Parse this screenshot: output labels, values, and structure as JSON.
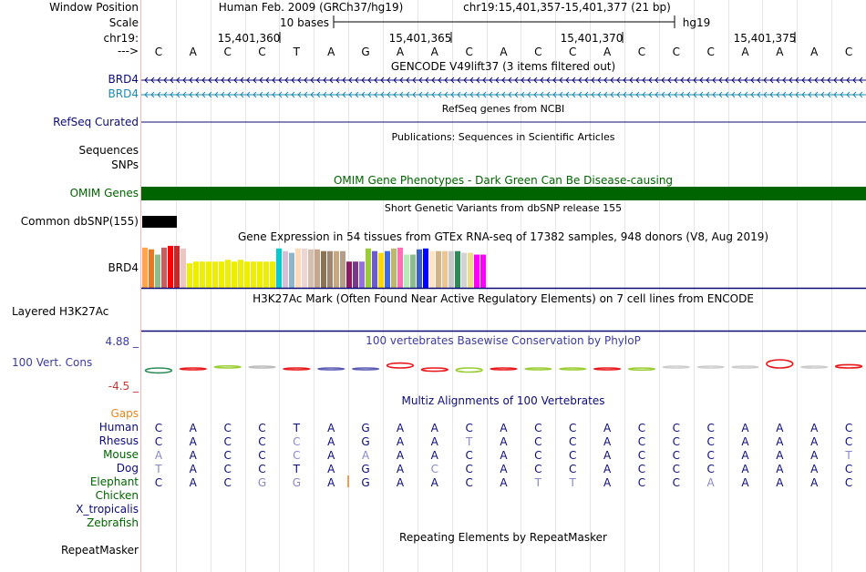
{
  "header": {
    "window_position_label": "Window Position",
    "assembly": "Human Feb. 2009 (GRCh37/hg19)",
    "position": "chr19:15,401,357-15,401,377 (21 bp)",
    "scale_label": "Scale",
    "scale_bar_text": "10 bases",
    "scale_db": "hg19",
    "chrom_label": "chr19:",
    "ticks": [
      "15,401,360",
      "15,401,365",
      "15,401,370",
      "15,401,375"
    ],
    "strand_label": "--->"
  },
  "sequence": [
    "C",
    "A",
    "C",
    "C",
    "T",
    "A",
    "G",
    "A",
    "A",
    "C",
    "A",
    "C",
    "C",
    "A",
    "C",
    "C",
    "C",
    "A",
    "A",
    "A",
    "C"
  ],
  "tracks": {
    "gencode": {
      "title": "GENCODE V49lift37 (3 items filtered out)",
      "genes": [
        {
          "name": "BRD4",
          "color": "#0c0c78"
        },
        {
          "name": "BRD4",
          "color": "#1d8ab0"
        }
      ]
    },
    "refseq": {
      "label": "RefSeq Curated",
      "title": "RefSeq genes from NCBI",
      "color": "#0c0c78"
    },
    "publications": {
      "title": "Publications: Sequences in Scientific Articles",
      "labels": [
        "Sequences",
        "SNPs"
      ]
    },
    "omim": {
      "label": "OMIM Genes",
      "title": "OMIM Gene Phenotypes - Dark Green Can Be Disease-causing",
      "color": "#006400"
    },
    "dbsnp": {
      "title": "Short Genetic Variants from dbSNP release 155",
      "label": "Common dbSNP(155)"
    },
    "gtex": {
      "title": "Gene Expression in 54 tissues from GTEx RNA-seq of 17382 samples, 948 donors (V8, Aug 2019)",
      "label": "BRD4",
      "colors": [
        "#ffa54f",
        "#ee7621",
        "#8fbc8f",
        "#cd5c5c",
        "#ff0000",
        "#cd2626",
        "#eec5c5",
        "#eeee00",
        "#eeee00",
        "#eeee00",
        "#eeee00",
        "#eeee00",
        "#eeee00",
        "#eeee00",
        "#eeee00",
        "#eeee00",
        "#eeee00",
        "#eeee00",
        "#eeee00",
        "#eeee00",
        "#eeee00",
        "#00cdcd",
        "#d8bfd8",
        "#8db6cd",
        "#ffdab9",
        "#eed5d2",
        "#d3c0b0",
        "#c8a68c",
        "#8b7355",
        "#a08570",
        "#c6a883",
        "#b49e88",
        "#8b1c62",
        "#7a378b",
        "#9370db",
        "#9acd32",
        "#6a5acd",
        "#ffd700",
        "#4169e1",
        "#bdb76b",
        "#ff6eb4",
        "#b4eeb4",
        "#8fbc8f",
        "#3a5fcd",
        "#0000ff",
        "#ffe4c4",
        "#d2b48c",
        "#eec591",
        "#c8c8c8",
        "#2e8b57",
        "#d3d3d3",
        "#eedd82",
        "#ff00ff",
        "#ff00ff"
      ],
      "values": [
        46,
        44,
        38,
        46,
        48,
        48,
        45,
        28,
        30,
        30,
        30,
        30,
        30,
        32,
        30,
        32,
        30,
        30,
        30,
        30,
        30,
        45,
        42,
        40,
        45,
        45,
        44,
        44,
        42,
        42,
        42,
        42,
        30,
        30,
        30,
        45,
        42,
        40,
        42,
        45,
        46,
        38,
        38,
        44,
        45,
        42,
        42,
        42,
        42,
        42,
        40,
        40,
        38,
        38
      ]
    },
    "h3k27ac": {
      "title": "H3K27Ac Mark (Often Found Near Active Regulatory Elements) on 7 cell lines from ENCODE",
      "label": "Layered H3K27Ac"
    },
    "phylop": {
      "title": "100 vertebrates Basewise Conservation by PhyloP",
      "label": "100 Vert. Cons",
      "ymax": "4.88 _",
      "ymin": "-4.5 _",
      "scores": [
        -0.6,
        -0.1,
        0.25,
        0.0,
        -0.05,
        -0.15,
        -0.1,
        0.6,
        -0.4,
        -0.5,
        -0.1,
        -0.1,
        -0.05,
        -0.05,
        -0.25,
        0.0,
        0.0,
        0.0,
        1.0,
        0.0,
        0.4
      ],
      "colors": [
        "#2e8b57",
        "#e8171b",
        "#9acd32",
        "#bbbbbb",
        "#e8171b",
        "#5a5ab4",
        "#5a5ab4",
        "#e8171b",
        "#e8171b",
        "#9acd32",
        "#e8171b",
        "#9acd32",
        "#9acd32",
        "#e8171b",
        "#9acd32",
        "#cccccc",
        "#cccccc",
        "#cccccc",
        "#e8171b",
        "#cccccc",
        "#e8171b"
      ]
    },
    "multiz": {
      "title": "Multiz Alignments of 100 Vertebrates",
      "gaps_label": "Gaps",
      "species": [
        {
          "name": "Human",
          "color": "#0c0c78",
          "bases": "CACCTAGAACACCACCCAAAC",
          "light": []
        },
        {
          "name": "Rhesus",
          "color": "#0c0c78",
          "bases": "CACCCAGAATACCACCCAAAC",
          "light": [
            4,
            9
          ]
        },
        {
          "name": "Mouse",
          "color": "#006400",
          "bases": "AACCCAAAACACCACCCAAAT",
          "light": [
            0,
            4,
            6,
            20
          ]
        },
        {
          "name": "Dog",
          "color": "#0c0c78",
          "bases": "TACCTAGACCACCACCCAAAC",
          "light": [
            0,
            8
          ]
        },
        {
          "name": "Elephant",
          "color": "#006400",
          "bases": "CACGGAGAACATTACCAAAAC",
          "light": [
            3,
            4,
            11,
            12,
            16
          ]
        },
        {
          "name": "Chicken",
          "color": "#006400",
          "bases": "",
          "light": []
        },
        {
          "name": "X_tropicalis",
          "color": "#0c0c78",
          "bases": "",
          "light": []
        },
        {
          "name": "Zebrafish",
          "color": "#006400",
          "bases": "",
          "light": []
        }
      ]
    },
    "repeatmasker": {
      "title": "Repeating Elements by RepeatMasker",
      "label": "RepeatMasker"
    }
  },
  "colors": {
    "navy": "#0c0c78",
    "teal": "#1d8ab0",
    "omim_label": "#006400",
    "gaps": "#e8861a",
    "cons_blue": "#3c3c9c",
    "cons_red": "#cc3333"
  }
}
